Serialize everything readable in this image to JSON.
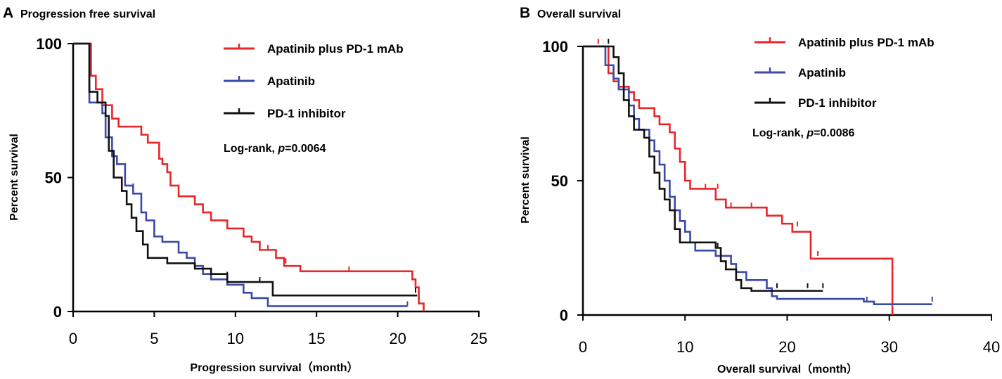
{
  "colors": {
    "red": "#e8262a",
    "blue": "#3b49a9",
    "black": "#111111"
  },
  "chart_data": [
    {
      "type": "line",
      "panel_label": "A",
      "title": "Progression free survival",
      "xlabel": "Progression survival（month）",
      "ylabel": "Percent survival",
      "xlim": [
        0,
        25
      ],
      "ylim": [
        0,
        100
      ],
      "xticks": [
        0,
        5,
        10,
        15,
        20,
        25
      ],
      "yticks": [
        0,
        50,
        100
      ],
      "annotation": {
        "prefix": "Log-rank, ",
        "p_label": "p",
        "value": "=0.0064"
      },
      "legend_position": "top-right",
      "series": [
        {
          "name": "Apatinib plus PD-1 mAb",
          "color": "#e8262a",
          "steps": [
            [
              0,
              100
            ],
            [
              1.1,
              88
            ],
            [
              1.4,
              83
            ],
            [
              1.8,
              77
            ],
            [
              2.4,
              72
            ],
            [
              2.8,
              69
            ],
            [
              4.0,
              69
            ],
            [
              4.2,
              66
            ],
            [
              4.6,
              63
            ],
            [
              5.3,
              57
            ],
            [
              5.5,
              55
            ],
            [
              5.8,
              52
            ],
            [
              6.0,
              47
            ],
            [
              6.5,
              43
            ],
            [
              7.5,
              40
            ],
            [
              8.0,
              37
            ],
            [
              8.5,
              34
            ],
            [
              9.5,
              31
            ],
            [
              10.5,
              28
            ],
            [
              11.0,
              26
            ],
            [
              11.5,
              23
            ],
            [
              12.5,
              20
            ],
            [
              13.0,
              17
            ],
            [
              14.0,
              15
            ],
            [
              20.9,
              12
            ],
            [
              21.1,
              9
            ],
            [
              21.3,
              3
            ],
            [
              21.6,
              0
            ]
          ],
          "censored": [
            [
              1.8,
              77
            ],
            [
              12.0,
              23
            ],
            [
              13.1,
              18
            ],
            [
              17.0,
              15
            ]
          ]
        },
        {
          "name": "Apatinib",
          "color": "#3b49a9",
          "steps": [
            [
              0,
              100
            ],
            [
              1.0,
              78
            ],
            [
              1.8,
              74
            ],
            [
              2.0,
              65
            ],
            [
              2.4,
              58
            ],
            [
              2.7,
              55
            ],
            [
              3.2,
              47
            ],
            [
              3.7,
              44
            ],
            [
              4.2,
              37
            ],
            [
              4.5,
              34
            ],
            [
              5.0,
              28
            ],
            [
              5.5,
              26
            ],
            [
              6.5,
              22
            ],
            [
              7.0,
              20
            ],
            [
              7.5,
              17
            ],
            [
              8.0,
              14
            ],
            [
              8.5,
              12
            ],
            [
              9.5,
              10
            ],
            [
              10.5,
              7
            ],
            [
              11.0,
              5
            ],
            [
              12.0,
              2
            ],
            [
              20.6,
              2
            ]
          ],
          "censored": [
            [
              3.7,
              46
            ],
            [
              20.6,
              2
            ]
          ]
        },
        {
          "name": "PD-1 inhibitor",
          "color": "#111111",
          "steps": [
            [
              0,
              100
            ],
            [
              1.0,
              82
            ],
            [
              1.5,
              78
            ],
            [
              2.0,
              73
            ],
            [
              2.2,
              60
            ],
            [
              2.5,
              50
            ],
            [
              3.0,
              45
            ],
            [
              3.3,
              40
            ],
            [
              3.6,
              35
            ],
            [
              3.9,
              30
            ],
            [
              4.3,
              25
            ],
            [
              4.6,
              20
            ],
            [
              5.8,
              18
            ],
            [
              7.5,
              16
            ],
            [
              8.5,
              14
            ],
            [
              9.5,
              11
            ],
            [
              12.1,
              11
            ],
            [
              12.3,
              6
            ],
            [
              21.2,
              6
            ]
          ],
          "censored": [
            [
              9.5,
              13
            ],
            [
              11.5,
              11
            ],
            [
              21.1,
              7
            ]
          ]
        }
      ]
    },
    {
      "type": "line",
      "panel_label": "B",
      "title": "Overall survival",
      "xlabel": "Overall survival（month）",
      "ylabel": "Percent survival",
      "xlim": [
        0,
        40
      ],
      "ylim": [
        0,
        100
      ],
      "xticks": [
        0,
        10,
        20,
        30,
        40
      ],
      "yticks": [
        0,
        50,
        100
      ],
      "annotation": {
        "prefix": "Log-rank, ",
        "p_label": "p",
        "value": "=0.0086"
      },
      "legend_position": "top-right",
      "series": [
        {
          "name": "Apatinib plus PD-1 mAb",
          "color": "#e8262a",
          "steps": [
            [
              0,
              100
            ],
            [
              2.5,
              90
            ],
            [
              3.0,
              87
            ],
            [
              3.5,
              85
            ],
            [
              4.5,
              83
            ],
            [
              5.0,
              80
            ],
            [
              5.5,
              77
            ],
            [
              7.0,
              74
            ],
            [
              7.5,
              71
            ],
            [
              8.5,
              68
            ],
            [
              9.0,
              62
            ],
            [
              9.5,
              57
            ],
            [
              10.0,
              50
            ],
            [
              10.5,
              47
            ],
            [
              13.0,
              43
            ],
            [
              14.0,
              40
            ],
            [
              18.0,
              37
            ],
            [
              19.5,
              34
            ],
            [
              20.5,
              31
            ],
            [
              22.3,
              21
            ],
            [
              29.5,
              21
            ],
            [
              30.3,
              0
            ]
          ],
          "censored": [
            [
              1.5,
              101
            ],
            [
              12.0,
              47
            ],
            [
              13.2,
              47
            ],
            [
              14.5,
              40
            ],
            [
              16.5,
              40
            ],
            [
              21.0,
              33
            ],
            [
              23.0,
              22
            ]
          ]
        },
        {
          "name": "Apatinib",
          "color": "#3b49a9",
          "steps": [
            [
              0,
              100
            ],
            [
              2.2,
              93
            ],
            [
              3.0,
              88
            ],
            [
              3.5,
              84
            ],
            [
              4.5,
              78
            ],
            [
              5.0,
              73
            ],
            [
              5.5,
              69
            ],
            [
              6.5,
              65
            ],
            [
              7.0,
              61
            ],
            [
              7.5,
              56
            ],
            [
              8.0,
              50
            ],
            [
              8.5,
              44
            ],
            [
              9.0,
              39
            ],
            [
              9.5,
              35
            ],
            [
              10.0,
              31
            ],
            [
              10.5,
              27
            ],
            [
              11.0,
              24
            ],
            [
              13.0,
              22
            ],
            [
              14.5,
              19
            ],
            [
              15.0,
              16
            ],
            [
              16.0,
              13
            ],
            [
              18.0,
              10
            ],
            [
              18.5,
              7
            ],
            [
              19.0,
              6
            ],
            [
              27.5,
              5
            ],
            [
              28.5,
              4
            ],
            [
              34.2,
              4
            ]
          ],
          "censored": [
            [
              27.8,
              5
            ],
            [
              34.2,
              5
            ]
          ]
        },
        {
          "name": "PD-1 inhibitor",
          "color": "#111111",
          "steps": [
            [
              0,
              100
            ],
            [
              3.0,
              96
            ],
            [
              3.5,
              90
            ],
            [
              4.0,
              80
            ],
            [
              4.5,
              74
            ],
            [
              5.0,
              69
            ],
            [
              6.0,
              66
            ],
            [
              6.5,
              59
            ],
            [
              7.0,
              53
            ],
            [
              7.5,
              47
            ],
            [
              8.0,
              43
            ],
            [
              8.5,
              39
            ],
            [
              9.0,
              32
            ],
            [
              9.5,
              27
            ],
            [
              13.0,
              25
            ],
            [
              13.5,
              20
            ],
            [
              14.0,
              17
            ],
            [
              15.0,
              13
            ],
            [
              15.5,
              10
            ],
            [
              16.5,
              9
            ],
            [
              23.5,
              9
            ]
          ],
          "censored": [
            [
              2.5,
              101
            ],
            [
              13.2,
              25
            ],
            [
              19.0,
              10
            ],
            [
              22.0,
              10
            ],
            [
              23.5,
              10
            ]
          ]
        }
      ]
    }
  ]
}
